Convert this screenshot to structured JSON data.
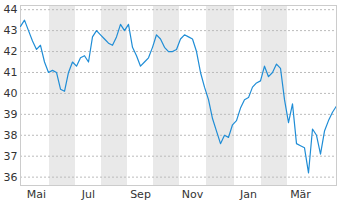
{
  "chart_data": {
    "type": "line",
    "color": "#1f8dd6",
    "grid": true,
    "ylim": [
      35.6,
      44.2
    ],
    "yticks": [
      36,
      37,
      38,
      39,
      40,
      41,
      42,
      43,
      44
    ],
    "categories": [
      null,
      null,
      null,
      null,
      "Mai",
      null,
      null,
      null,
      null,
      null,
      null,
      null,
      null,
      null,
      null,
      null,
      null,
      "Jul",
      null,
      null,
      null,
      null,
      null,
      null,
      null,
      null,
      null,
      null,
      null,
      null,
      "Sep",
      null,
      null,
      null,
      null,
      null,
      null,
      null,
      null,
      null,
      null,
      null,
      null,
      "Nov",
      null,
      null,
      null,
      null,
      null,
      null,
      null,
      null,
      null,
      null,
      null,
      null,
      null,
      "Jan",
      null,
      null,
      null,
      null,
      null,
      null,
      null,
      null,
      null,
      null,
      null,
      null,
      "Mär",
      null,
      null,
      null,
      null,
      null,
      null,
      null,
      null,
      null
    ],
    "values": [
      43.2,
      43.5,
      43.0,
      42.5,
      42.1,
      42.3,
      41.5,
      41.0,
      41.1,
      41.0,
      40.2,
      40.1,
      41.0,
      41.5,
      41.3,
      41.7,
      41.8,
      41.5,
      42.7,
      43.0,
      42.8,
      42.6,
      42.4,
      42.3,
      42.7,
      43.3,
      43.0,
      43.3,
      42.2,
      41.8,
      41.3,
      41.5,
      41.7,
      42.2,
      42.8,
      42.6,
      42.2,
      42.0,
      42.0,
      42.1,
      42.6,
      42.8,
      42.7,
      42.6,
      42.0,
      41.0,
      40.3,
      39.7,
      38.8,
      38.2,
      37.6,
      38.0,
      37.9,
      38.5,
      38.7,
      39.3,
      39.7,
      39.8,
      40.3,
      40.5,
      40.6,
      41.3,
      40.8,
      41.0,
      41.4,
      41.2,
      39.7,
      38.6,
      39.5,
      37.6,
      37.5,
      37.4,
      36.2,
      38.3,
      38.0,
      37.1,
      38.2,
      38.7,
      39.1,
      39.4
    ]
  }
}
